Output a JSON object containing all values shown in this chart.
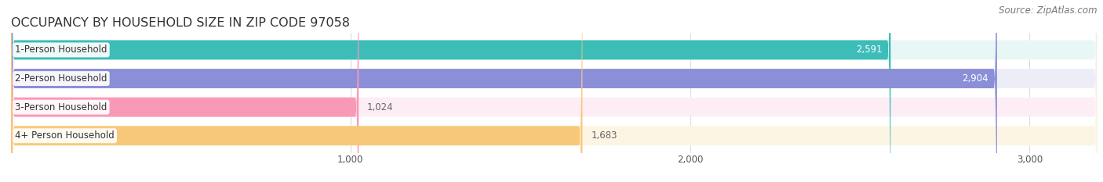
{
  "title": "OCCUPANCY BY HOUSEHOLD SIZE IN ZIP CODE 97058",
  "source": "Source: ZipAtlas.com",
  "categories": [
    "1-Person Household",
    "2-Person Household",
    "3-Person Household",
    "4+ Person Household"
  ],
  "values": [
    2591,
    2904,
    1024,
    1683
  ],
  "bar_colors": [
    "#3dbdb8",
    "#8b8fd8",
    "#f899b8",
    "#f8c87a"
  ],
  "bar_bg_colors": [
    "#e8f7f6",
    "#ededf8",
    "#fdeef5",
    "#fdf5e4"
  ],
  "label_colors": [
    "#ffffff",
    "#ffffff",
    "#666666",
    "#666666"
  ],
  "xlim": [
    0,
    3200
  ],
  "xticks": [
    1000,
    2000,
    3000
  ],
  "xtick_labels": [
    "1,000",
    "2,000",
    "3,000"
  ],
  "title_fontsize": 11.5,
  "source_fontsize": 8.5,
  "cat_fontsize": 8.5,
  "val_fontsize": 8.5,
  "background_color": "#ffffff"
}
